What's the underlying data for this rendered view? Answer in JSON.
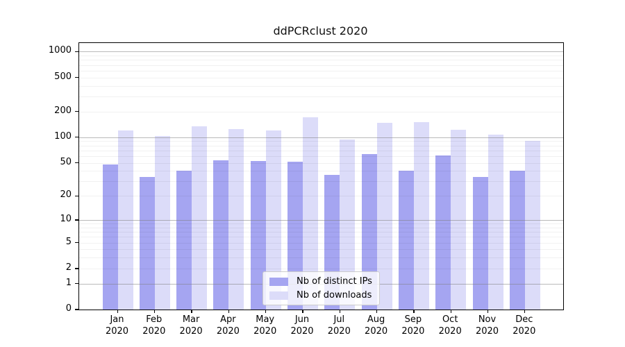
{
  "figure": {
    "title": "ddPCRclust 2020"
  },
  "chart_data": {
    "type": "bar",
    "title": "ddPCRclust 2020",
    "categories": [
      "Jan 2020",
      "Feb 2020",
      "Mar 2020",
      "Apr 2020",
      "May 2020",
      "Jun 2020",
      "Jul 2020",
      "Aug 2020",
      "Sep 2020",
      "Oct 2020",
      "Nov 2020",
      "Dec 2020"
    ],
    "series": [
      {
        "name": "Nb of distinct IPs",
        "color": "#a5a5f1",
        "values": [
          48,
          34,
          40,
          53,
          52,
          51,
          36,
          63,
          40,
          61,
          34,
          40
        ]
      },
      {
        "name": "Nb of downloads",
        "color": "#dcdcf9",
        "values": [
          120,
          104,
          134,
          125,
          121,
          170,
          95,
          147,
          151,
          122,
          107,
          91
        ]
      }
    ],
    "xlabel": "",
    "ylabel": "",
    "y_scale": "log1p",
    "y_ticks": [
      1000,
      500,
      200,
      100,
      50,
      20,
      10,
      5,
      2,
      1,
      0
    ],
    "y_major_gridlines": [
      1000,
      100,
      10,
      1
    ],
    "ylim": [
      0,
      1258
    ],
    "grid": "horizontal major gray + faint log minors, drawn over bars",
    "legend_position": "lower center",
    "colors": {
      "distinct_ips": "#a5a5f1",
      "downloads": "#dcdcf9",
      "major_grid": "#808080",
      "minor_grid": "#ececec",
      "spine": "#000000"
    }
  }
}
